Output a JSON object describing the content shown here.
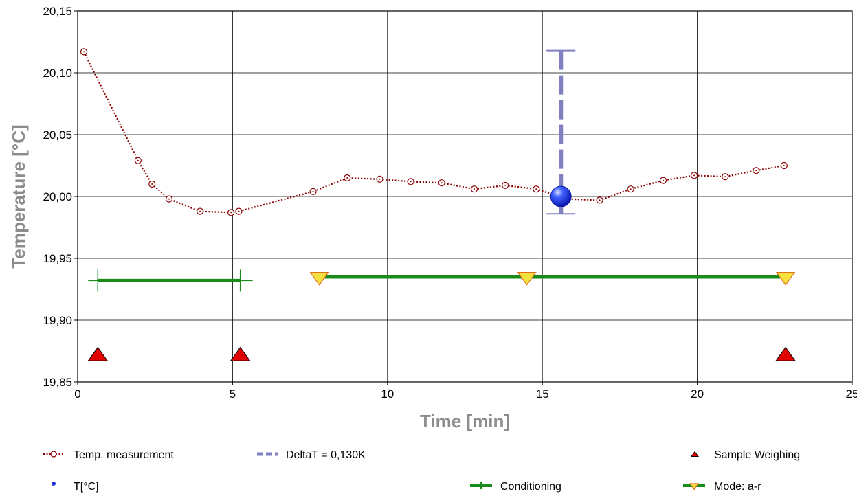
{
  "chart_data": {
    "type": "line",
    "xlabel": "Time [min]",
    "ylabel": "Temperature [°C]",
    "xlim": [
      0,
      25
    ],
    "ylim": [
      19.85,
      20.15
    ],
    "x_ticks": [
      "0",
      "5",
      "10",
      "15",
      "20",
      "25"
    ],
    "y_ticks": [
      "20,15",
      "20,10",
      "20,05",
      "20,00",
      "19,95",
      "19,90",
      "19,85"
    ],
    "grid": true,
    "legend_position": "bottom",
    "colors": {
      "temp": "#8b0000",
      "deltaT": "#8080c0",
      "weighing": "#e00000",
      "point": "#2030e0",
      "conditioning": "#1a8a1a",
      "mode": "#f6e040"
    },
    "series": [
      {
        "name": "Temp. measurement",
        "style": "dotted-line-circles",
        "x": [
          0.2,
          1.95,
          2.4,
          2.95,
          3.95,
          4.95,
          5.2,
          7.6,
          8.7,
          9.75,
          10.75,
          11.75,
          12.8,
          13.8,
          14.8,
          15.8,
          16.85,
          17.85,
          18.9,
          19.9,
          20.9,
          21.9,
          22.8
        ],
        "y": [
          20.117,
          20.029,
          20.01,
          19.998,
          19.988,
          19.987,
          19.988,
          20.004,
          20.015,
          20.014,
          20.012,
          20.011,
          20.006,
          20.009,
          20.006,
          19.998,
          19.997,
          20.006,
          20.013,
          20.017,
          20.016,
          20.021,
          20.025
        ]
      },
      {
        "name": "DeltaT = 0,130K",
        "style": "dashed-errorbar",
        "x": 15.6,
        "y_low": 19.986,
        "y_high": 20.118
      },
      {
        "name": "T[°C]",
        "style": "sphere-marker",
        "x": [
          15.6
        ],
        "y": [
          20.0
        ]
      },
      {
        "name": "Sample Weighing",
        "style": "triangle-up",
        "x": [
          0.65,
          5.25,
          22.85
        ],
        "y": [
          19.871,
          19.871,
          19.871
        ]
      },
      {
        "name": "Conditioning",
        "style": "thick-line-ticks",
        "segments": [
          {
            "x": [
              0.65,
              5.25
            ],
            "y": [
              19.932,
              19.932
            ]
          }
        ]
      },
      {
        "name": "Mode: a-r",
        "style": "thick-line-triangle-down",
        "segments": [
          {
            "x": [
              7.8,
              22.85
            ],
            "y": [
              19.935,
              19.935
            ]
          }
        ],
        "markers_x": [
          7.8,
          14.5,
          22.85
        ],
        "markers_y": [
          19.935,
          19.935,
          19.935
        ]
      }
    ]
  }
}
